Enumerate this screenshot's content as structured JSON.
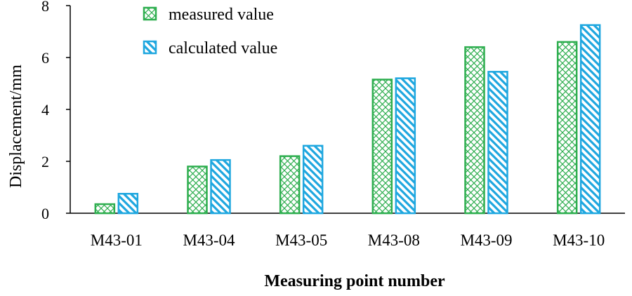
{
  "chart_data": {
    "type": "bar",
    "title": "",
    "xlabel": "Measuring point number",
    "ylabel": "Displacement/mm",
    "categories": [
      "M43-01",
      "M43-04",
      "M43-05",
      "M43-08",
      "M43-09",
      "M43-10"
    ],
    "series": [
      {
        "name": "measured value",
        "values": [
          0.35,
          1.8,
          2.2,
          5.15,
          6.4,
          6.6
        ],
        "color": "#2eae4f",
        "pattern": "crosshatch"
      },
      {
        "name": "calculated value",
        "values": [
          0.75,
          2.05,
          2.6,
          5.2,
          5.45,
          7.25
        ],
        "color": "#1fa7df",
        "pattern": "diagonal"
      }
    ],
    "ylim": [
      0,
      8
    ],
    "yticks": [
      0,
      2,
      4,
      6,
      8
    ],
    "legend_position": "top-left",
    "grid": false
  }
}
